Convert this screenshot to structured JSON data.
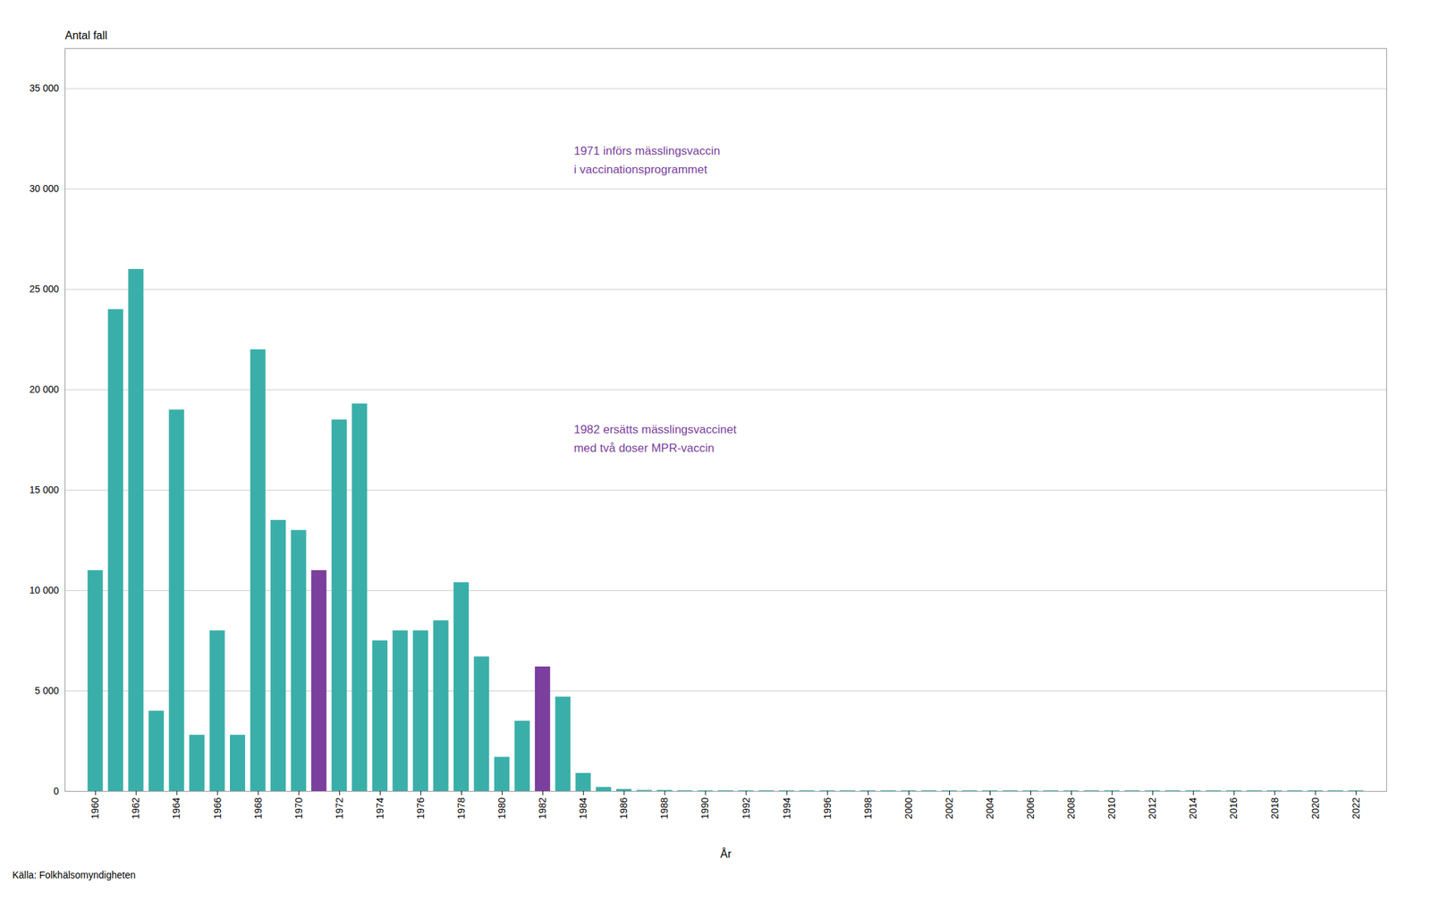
{
  "chart_data": {
    "type": "bar",
    "x": [
      1960,
      1961,
      1962,
      1963,
      1964,
      1965,
      1966,
      1967,
      1968,
      1969,
      1970,
      1971,
      1972,
      1973,
      1974,
      1975,
      1976,
      1977,
      1978,
      1979,
      1980,
      1981,
      1982,
      1983,
      1984,
      1985,
      1986,
      1987,
      1988,
      1989,
      1990,
      1991,
      1992,
      1993,
      1994,
      1995,
      1996,
      1997,
      1998,
      1999,
      2000,
      2001,
      2002,
      2003,
      2004,
      2005,
      2006,
      2007,
      2008,
      2009,
      2010,
      2011,
      2012,
      2013,
      2014,
      2015,
      2016,
      2017,
      2018,
      2019,
      2020,
      2021,
      2022
    ],
    "values": [
      11000,
      24000,
      26000,
      4000,
      19000,
      2800,
      8000,
      2800,
      22000,
      13500,
      13000,
      11000,
      18500,
      19300,
      7500,
      8000,
      8000,
      8500,
      10400,
      6700,
      1700,
      3500,
      6200,
      4700,
      900,
      200,
      100,
      50,
      50,
      30,
      30,
      30,
      30,
      30,
      30,
      30,
      30,
      30,
      30,
      30,
      30,
      30,
      30,
      30,
      30,
      30,
      30,
      30,
      30,
      30,
      30,
      30,
      30,
      30,
      30,
      30,
      30,
      30,
      30,
      30,
      30,
      30,
      30
    ],
    "colors": [
      "#3aafa9",
      "#3aafa9",
      "#3aafa9",
      "#3aafa9",
      "#3aafa9",
      "#3aafa9",
      "#3aafa9",
      "#3aafa9",
      "#3aafa9",
      "#3aafa9",
      "#3aafa9",
      "#7B3F9E",
      "#3aafa9",
      "#3aafa9",
      "#3aafa9",
      "#3aafa9",
      "#3aafa9",
      "#3aafa9",
      "#3aafa9",
      "#3aafa9",
      "#3aafa9",
      "#3aafa9",
      "#7B3F9E",
      "#3aafa9",
      "#3aafa9",
      "#3aafa9",
      "#3aafa9",
      "#3aafa9",
      "#3aafa9",
      "#3aafa9",
      "#3aafa9",
      "#3aafa9",
      "#3aafa9",
      "#3aafa9",
      "#3aafa9",
      "#3aafa9",
      "#3aafa9",
      "#3aafa9",
      "#3aafa9",
      "#3aafa9",
      "#3aafa9",
      "#3aafa9",
      "#3aafa9",
      "#3aafa9",
      "#3aafa9",
      "#3aafa9",
      "#3aafa9",
      "#3aafa9",
      "#3aafa9",
      "#3aafa9",
      "#3aafa9",
      "#3aafa9",
      "#3aafa9",
      "#3aafa9",
      "#3aafa9",
      "#3aafa9",
      "#3aafa9",
      "#3aafa9",
      "#3aafa9",
      "#3aafa9",
      "#3aafa9",
      "#3aafa9",
      "#3aafa9"
    ],
    "xlabel": "År",
    "ylabel": "Antal fall",
    "xlim": [
      1958.5,
      2023.5
    ],
    "xticks": [
      1960,
      1962,
      1964,
      1966,
      1968,
      1970,
      1972,
      1974,
      1976,
      1978,
      1980,
      1982,
      1984,
      1986,
      1988,
      1990,
      1992,
      1994,
      1996,
      1998,
      2000,
      2002,
      2004,
      2006,
      2008,
      2010,
      2012,
      2014,
      2016,
      2018,
      2020,
      2022
    ],
    "ylim": [
      0,
      37000
    ],
    "yticks": [
      0,
      {
        "value": 5000,
        "label": "5 000"
      },
      {
        "value": 10000,
        "label": "10 000"
      },
      {
        "value": 15000,
        "label": "15 000"
      },
      {
        "value": 20000,
        "label": "20 000"
      },
      {
        "value": 25000,
        "label": "25 000"
      },
      {
        "value": 30000,
        "label": "30 000"
      },
      {
        "value": 35000,
        "label": "35 000"
      }
    ],
    "grid": "y",
    "annotations": [
      {
        "text": "1971 införs mässlingsvaccin\ni vaccinationsprogrammet",
        "color": "#7B3F9E"
      },
      {
        "text": "1982 ersätts mässlingsvaccinet\nmed två doser MPR-vaccin",
        "color": "#7B3F9E"
      }
    ],
    "source": "Källa: Folkhälsomyndigheten"
  }
}
